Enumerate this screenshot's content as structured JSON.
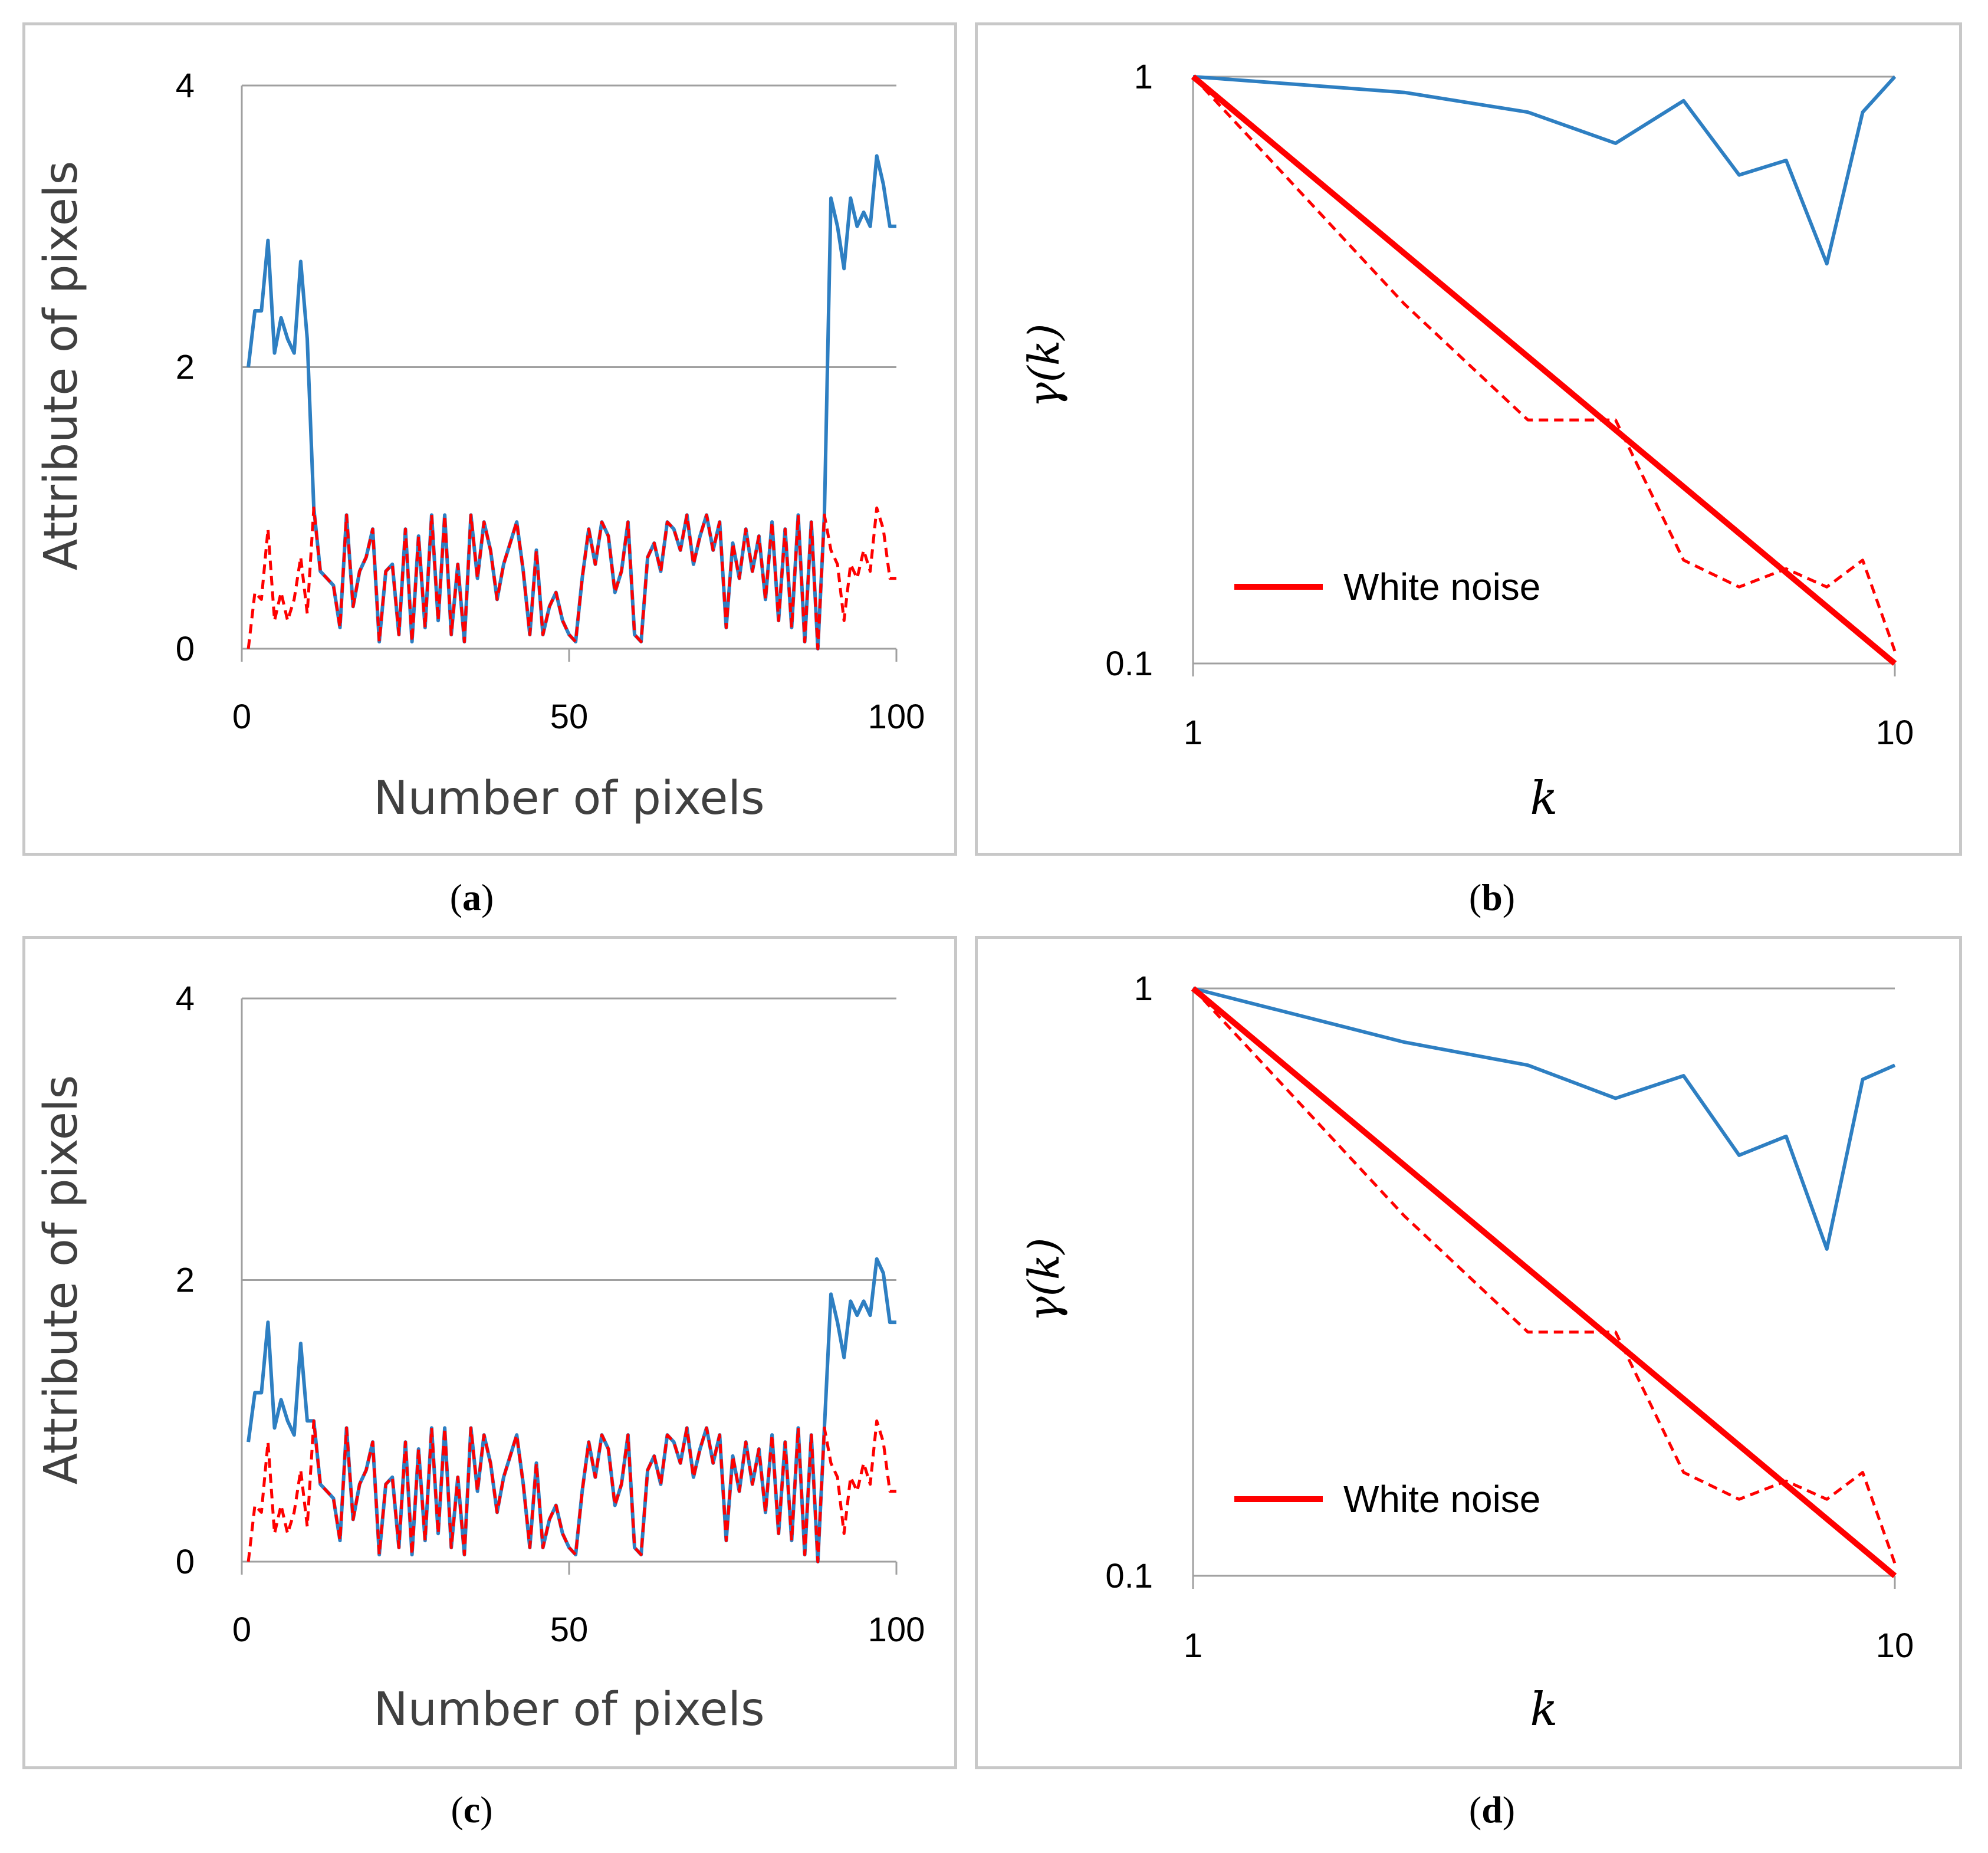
{
  "colors": {
    "blue": "#2e7fc2",
    "red": "#ff0000",
    "grid": "#a0a0a0",
    "frame": "#c8c8c8"
  },
  "chart_data": [
    {
      "panel": "a",
      "type": "line",
      "caption_label": "a",
      "xlabel": "Number of pixels",
      "ylabel": "Attribute of pixels",
      "xlim": [
        0,
        100
      ],
      "ylim": [
        0,
        4
      ],
      "xticks": [
        "0",
        "50",
        "100"
      ],
      "yticks": [
        "0",
        "2",
        "4"
      ],
      "series": [
        {
          "style": "solid",
          "color": "blue",
          "x": [
            1,
            2,
            3,
            4,
            5,
            6,
            7,
            8,
            9,
            10,
            11,
            12,
            13,
            14,
            15,
            16,
            17,
            18,
            19,
            20,
            21,
            22,
            23,
            24,
            25,
            26,
            27,
            28,
            29,
            30,
            31,
            32,
            33,
            34,
            35,
            36,
            37,
            38,
            39,
            40,
            41,
            42,
            43,
            44,
            45,
            46,
            47,
            48,
            49,
            50,
            51,
            52,
            53,
            54,
            55,
            56,
            57,
            58,
            59,
            60,
            61,
            62,
            63,
            64,
            65,
            66,
            67,
            68,
            69,
            70,
            71,
            72,
            73,
            74,
            75,
            76,
            77,
            78,
            79,
            80,
            81,
            82,
            83,
            84,
            85,
            86,
            87,
            88,
            89,
            90,
            91,
            92,
            93,
            94,
            95,
            96,
            97,
            98,
            99,
            100
          ],
          "y": [
            2.0,
            2.4,
            2.4,
            2.9,
            2.1,
            2.35,
            2.2,
            2.1,
            2.75,
            2.2,
            1.0,
            0.55,
            0.5,
            0.45,
            0.15,
            0.95,
            0.3,
            0.55,
            0.65,
            0.85,
            0.05,
            0.55,
            0.6,
            0.1,
            0.85,
            0.05,
            0.8,
            0.15,
            0.95,
            0.2,
            0.95,
            0.1,
            0.6,
            0.05,
            0.95,
            0.5,
            0.9,
            0.7,
            0.35,
            0.6,
            0.75,
            0.9,
            0.55,
            0.1,
            0.7,
            0.1,
            0.3,
            0.4,
            0.2,
            0.1,
            0.05,
            0.5,
            0.85,
            0.6,
            0.9,
            0.8,
            0.4,
            0.55,
            0.9,
            0.1,
            0.05,
            0.65,
            0.75,
            0.55,
            0.9,
            0.85,
            0.7,
            0.95,
            0.6,
            0.8,
            0.95,
            0.7,
            0.9,
            0.15,
            0.75,
            0.5,
            0.85,
            0.55,
            0.8,
            0.35,
            0.9,
            0.2,
            0.85,
            0.15,
            0.95,
            0.05,
            0.9,
            0.0,
            0.95,
            3.2,
            3.0,
            2.7,
            3.2,
            3.0,
            3.1,
            3.0,
            3.5,
            3.3,
            3.0,
            3.0
          ]
        },
        {
          "style": "dashed",
          "color": "red",
          "x": [
            1,
            2,
            3,
            4,
            5,
            6,
            7,
            8,
            9,
            10,
            11,
            12,
            13,
            14,
            15,
            16,
            17,
            18,
            19,
            20,
            21,
            22,
            23,
            24,
            25,
            26,
            27,
            28,
            29,
            30,
            31,
            32,
            33,
            34,
            35,
            36,
            37,
            38,
            39,
            40,
            41,
            42,
            43,
            44,
            45,
            46,
            47,
            48,
            49,
            50,
            51,
            52,
            53,
            54,
            55,
            56,
            57,
            58,
            59,
            60,
            61,
            62,
            63,
            64,
            65,
            66,
            67,
            68,
            69,
            70,
            71,
            72,
            73,
            74,
            75,
            76,
            77,
            78,
            79,
            80,
            81,
            82,
            83,
            84,
            85,
            86,
            87,
            88,
            89,
            90,
            91,
            92,
            93,
            94,
            95,
            96,
            97,
            98,
            99,
            100
          ],
          "y": [
            0.0,
            0.4,
            0.35,
            0.85,
            0.2,
            0.4,
            0.2,
            0.35,
            0.65,
            0.25,
            1.0,
            0.55,
            0.5,
            0.45,
            0.15,
            0.95,
            0.3,
            0.55,
            0.65,
            0.85,
            0.05,
            0.55,
            0.6,
            0.1,
            0.85,
            0.05,
            0.8,
            0.15,
            0.95,
            0.2,
            0.95,
            0.1,
            0.6,
            0.05,
            0.95,
            0.5,
            0.9,
            0.7,
            0.35,
            0.6,
            0.75,
            0.9,
            0.55,
            0.1,
            0.7,
            0.1,
            0.3,
            0.4,
            0.2,
            0.1,
            0.05,
            0.5,
            0.85,
            0.6,
            0.9,
            0.8,
            0.4,
            0.55,
            0.9,
            0.1,
            0.05,
            0.65,
            0.75,
            0.55,
            0.9,
            0.85,
            0.7,
            0.95,
            0.6,
            0.8,
            0.95,
            0.7,
            0.9,
            0.15,
            0.75,
            0.5,
            0.85,
            0.55,
            0.8,
            0.35,
            0.9,
            0.2,
            0.85,
            0.15,
            0.95,
            0.05,
            0.9,
            0.0,
            0.95,
            0.7,
            0.6,
            0.2,
            0.6,
            0.5,
            0.7,
            0.55,
            1.0,
            0.85,
            0.5,
            0.5
          ]
        }
      ]
    },
    {
      "panel": "b",
      "type": "line",
      "scale": "log-log",
      "caption_label": "b",
      "xlabel": "k",
      "ylabel": "γ(k)",
      "xlim": [
        1,
        10
      ],
      "ylim": [
        0.1,
        1
      ],
      "xticks": [
        "1",
        "10"
      ],
      "yticks": [
        "0.1",
        "1"
      ],
      "legend": {
        "label": "White noise",
        "position": "bottom-left"
      },
      "series": [
        {
          "style": "solid",
          "color": "blue",
          "x": [
            1,
            2,
            3,
            4,
            5,
            6,
            7,
            8,
            9,
            10
          ],
          "y": [
            1.0,
            0.94,
            0.87,
            0.77,
            0.91,
            0.68,
            0.72,
            0.48,
            0.87,
            1.0
          ]
        },
        {
          "name": "White noise",
          "style": "solid-thick",
          "color": "red",
          "x": [
            1,
            10
          ],
          "y": [
            1.0,
            0.1
          ]
        },
        {
          "style": "dashed",
          "color": "red",
          "x": [
            1,
            2,
            3,
            4,
            5,
            6,
            7,
            8,
            9,
            10
          ],
          "y": [
            1.0,
            0.41,
            0.26,
            0.26,
            0.15,
            0.135,
            0.145,
            0.135,
            0.15,
            0.105
          ]
        }
      ]
    },
    {
      "panel": "c",
      "type": "line",
      "caption_label": "c",
      "xlabel": "Number of pixels",
      "ylabel": "Attribute of pixels",
      "xlim": [
        0,
        100
      ],
      "ylim": [
        0,
        4
      ],
      "xticks": [
        "0",
        "50",
        "100"
      ],
      "yticks": [
        "0",
        "2",
        "4"
      ],
      "series": [
        {
          "style": "solid",
          "color": "blue",
          "x": [
            1,
            2,
            3,
            4,
            5,
            6,
            7,
            8,
            9,
            10,
            11,
            12,
            13,
            14,
            15,
            16,
            17,
            18,
            19,
            20,
            21,
            22,
            23,
            24,
            25,
            26,
            27,
            28,
            29,
            30,
            31,
            32,
            33,
            34,
            35,
            36,
            37,
            38,
            39,
            40,
            41,
            42,
            43,
            44,
            45,
            46,
            47,
            48,
            49,
            50,
            51,
            52,
            53,
            54,
            55,
            56,
            57,
            58,
            59,
            60,
            61,
            62,
            63,
            64,
            65,
            66,
            67,
            68,
            69,
            70,
            71,
            72,
            73,
            74,
            75,
            76,
            77,
            78,
            79,
            80,
            81,
            82,
            83,
            84,
            85,
            86,
            87,
            88,
            89,
            90,
            91,
            92,
            93,
            94,
            95,
            96,
            97,
            98,
            99,
            100
          ],
          "y": [
            0.85,
            1.2,
            1.2,
            1.7,
            0.95,
            1.15,
            1.0,
            0.9,
            1.55,
            1.0,
            1.0,
            0.55,
            0.5,
            0.45,
            0.15,
            0.95,
            0.3,
            0.55,
            0.65,
            0.85,
            0.05,
            0.55,
            0.6,
            0.1,
            0.85,
            0.05,
            0.8,
            0.15,
            0.95,
            0.2,
            0.95,
            0.1,
            0.6,
            0.05,
            0.95,
            0.5,
            0.9,
            0.7,
            0.35,
            0.6,
            0.75,
            0.9,
            0.55,
            0.1,
            0.7,
            0.1,
            0.3,
            0.4,
            0.2,
            0.1,
            0.05,
            0.5,
            0.85,
            0.6,
            0.9,
            0.8,
            0.4,
            0.55,
            0.9,
            0.1,
            0.05,
            0.65,
            0.75,
            0.55,
            0.9,
            0.85,
            0.7,
            0.95,
            0.6,
            0.8,
            0.95,
            0.7,
            0.9,
            0.15,
            0.75,
            0.5,
            0.85,
            0.55,
            0.8,
            0.35,
            0.9,
            0.2,
            0.85,
            0.15,
            0.95,
            0.05,
            0.9,
            0.0,
            0.95,
            1.9,
            1.7,
            1.45,
            1.85,
            1.75,
            1.85,
            1.75,
            2.15,
            2.05,
            1.7,
            1.7
          ]
        },
        {
          "style": "dashed",
          "color": "red",
          "x": [
            1,
            2,
            3,
            4,
            5,
            6,
            7,
            8,
            9,
            10,
            11,
            12,
            13,
            14,
            15,
            16,
            17,
            18,
            19,
            20,
            21,
            22,
            23,
            24,
            25,
            26,
            27,
            28,
            29,
            30,
            31,
            32,
            33,
            34,
            35,
            36,
            37,
            38,
            39,
            40,
            41,
            42,
            43,
            44,
            45,
            46,
            47,
            48,
            49,
            50,
            51,
            52,
            53,
            54,
            55,
            56,
            57,
            58,
            59,
            60,
            61,
            62,
            63,
            64,
            65,
            66,
            67,
            68,
            69,
            70,
            71,
            72,
            73,
            74,
            75,
            76,
            77,
            78,
            79,
            80,
            81,
            82,
            83,
            84,
            85,
            86,
            87,
            88,
            89,
            90,
            91,
            92,
            93,
            94,
            95,
            96,
            97,
            98,
            99,
            100
          ],
          "y": [
            0.0,
            0.4,
            0.35,
            0.85,
            0.2,
            0.4,
            0.2,
            0.35,
            0.65,
            0.25,
            1.0,
            0.55,
            0.5,
            0.45,
            0.15,
            0.95,
            0.3,
            0.55,
            0.65,
            0.85,
            0.05,
            0.55,
            0.6,
            0.1,
            0.85,
            0.05,
            0.8,
            0.15,
            0.95,
            0.2,
            0.95,
            0.1,
            0.6,
            0.05,
            0.95,
            0.5,
            0.9,
            0.7,
            0.35,
            0.6,
            0.75,
            0.9,
            0.55,
            0.1,
            0.7,
            0.1,
            0.3,
            0.4,
            0.2,
            0.1,
            0.05,
            0.5,
            0.85,
            0.6,
            0.9,
            0.8,
            0.4,
            0.55,
            0.9,
            0.1,
            0.05,
            0.65,
            0.75,
            0.55,
            0.9,
            0.85,
            0.7,
            0.95,
            0.6,
            0.8,
            0.95,
            0.7,
            0.9,
            0.15,
            0.75,
            0.5,
            0.85,
            0.55,
            0.8,
            0.35,
            0.9,
            0.2,
            0.85,
            0.15,
            0.95,
            0.05,
            0.9,
            0.0,
            0.95,
            0.7,
            0.6,
            0.2,
            0.6,
            0.5,
            0.7,
            0.55,
            1.0,
            0.85,
            0.5,
            0.5
          ]
        }
      ]
    },
    {
      "panel": "d",
      "type": "line",
      "scale": "log-log",
      "caption_label": "d",
      "xlabel": "k",
      "ylabel": "γ(k)",
      "xlim": [
        1,
        10
      ],
      "ylim": [
        0.1,
        1
      ],
      "xticks": [
        "1",
        "10"
      ],
      "yticks": [
        "0.1",
        "1"
      ],
      "legend": {
        "label": "White noise",
        "position": "bottom-left"
      },
      "series": [
        {
          "style": "solid",
          "color": "blue",
          "x": [
            1,
            2,
            3,
            4,
            5,
            6,
            7,
            8,
            9,
            10
          ],
          "y": [
            1.0,
            0.81,
            0.74,
            0.65,
            0.71,
            0.52,
            0.56,
            0.36,
            0.7,
            0.74
          ]
        },
        {
          "name": "White noise",
          "style": "solid-thick",
          "color": "red",
          "x": [
            1,
            10
          ],
          "y": [
            1.0,
            0.1
          ]
        },
        {
          "style": "dashed",
          "color": "red",
          "x": [
            1,
            2,
            3,
            4,
            5,
            6,
            7,
            8,
            9,
            10
          ],
          "y": [
            1.0,
            0.41,
            0.26,
            0.26,
            0.15,
            0.135,
            0.145,
            0.135,
            0.15,
            0.105
          ]
        }
      ]
    }
  ]
}
